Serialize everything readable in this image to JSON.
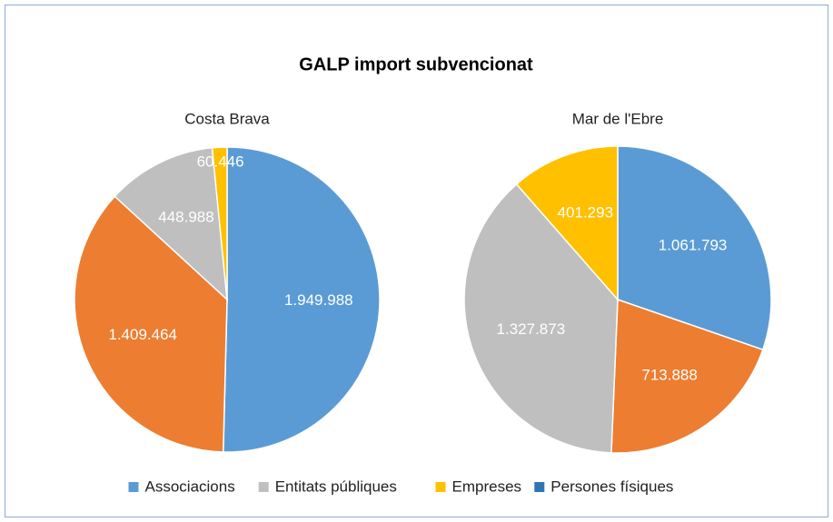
{
  "chart_data": {
    "type": "pie",
    "title": "GALP import subvencionat",
    "categories": [
      "Associacions",
      null,
      "Entitats públiques",
      "Empreses",
      "Persones físiques"
    ],
    "colors": [
      "#5b9bd5",
      "#ed7d31",
      "#bfbfbf",
      "#ffc000",
      "#2e75b6"
    ],
    "series": [
      {
        "name": "Costa Brava",
        "values": [
          1949988,
          1409464,
          448988,
          60446,
          null
        ],
        "value_labels": [
          "1.949.988",
          "1.409.464",
          "448.988",
          "60.446",
          null
        ]
      },
      {
        "name": "Mar de l'Ebre",
        "values": [
          1061793,
          713888,
          1327873,
          401293,
          null
        ],
        "value_labels": [
          "1.061.793",
          "713.888",
          "1.327.873",
          "401.293",
          null
        ]
      }
    ]
  }
}
